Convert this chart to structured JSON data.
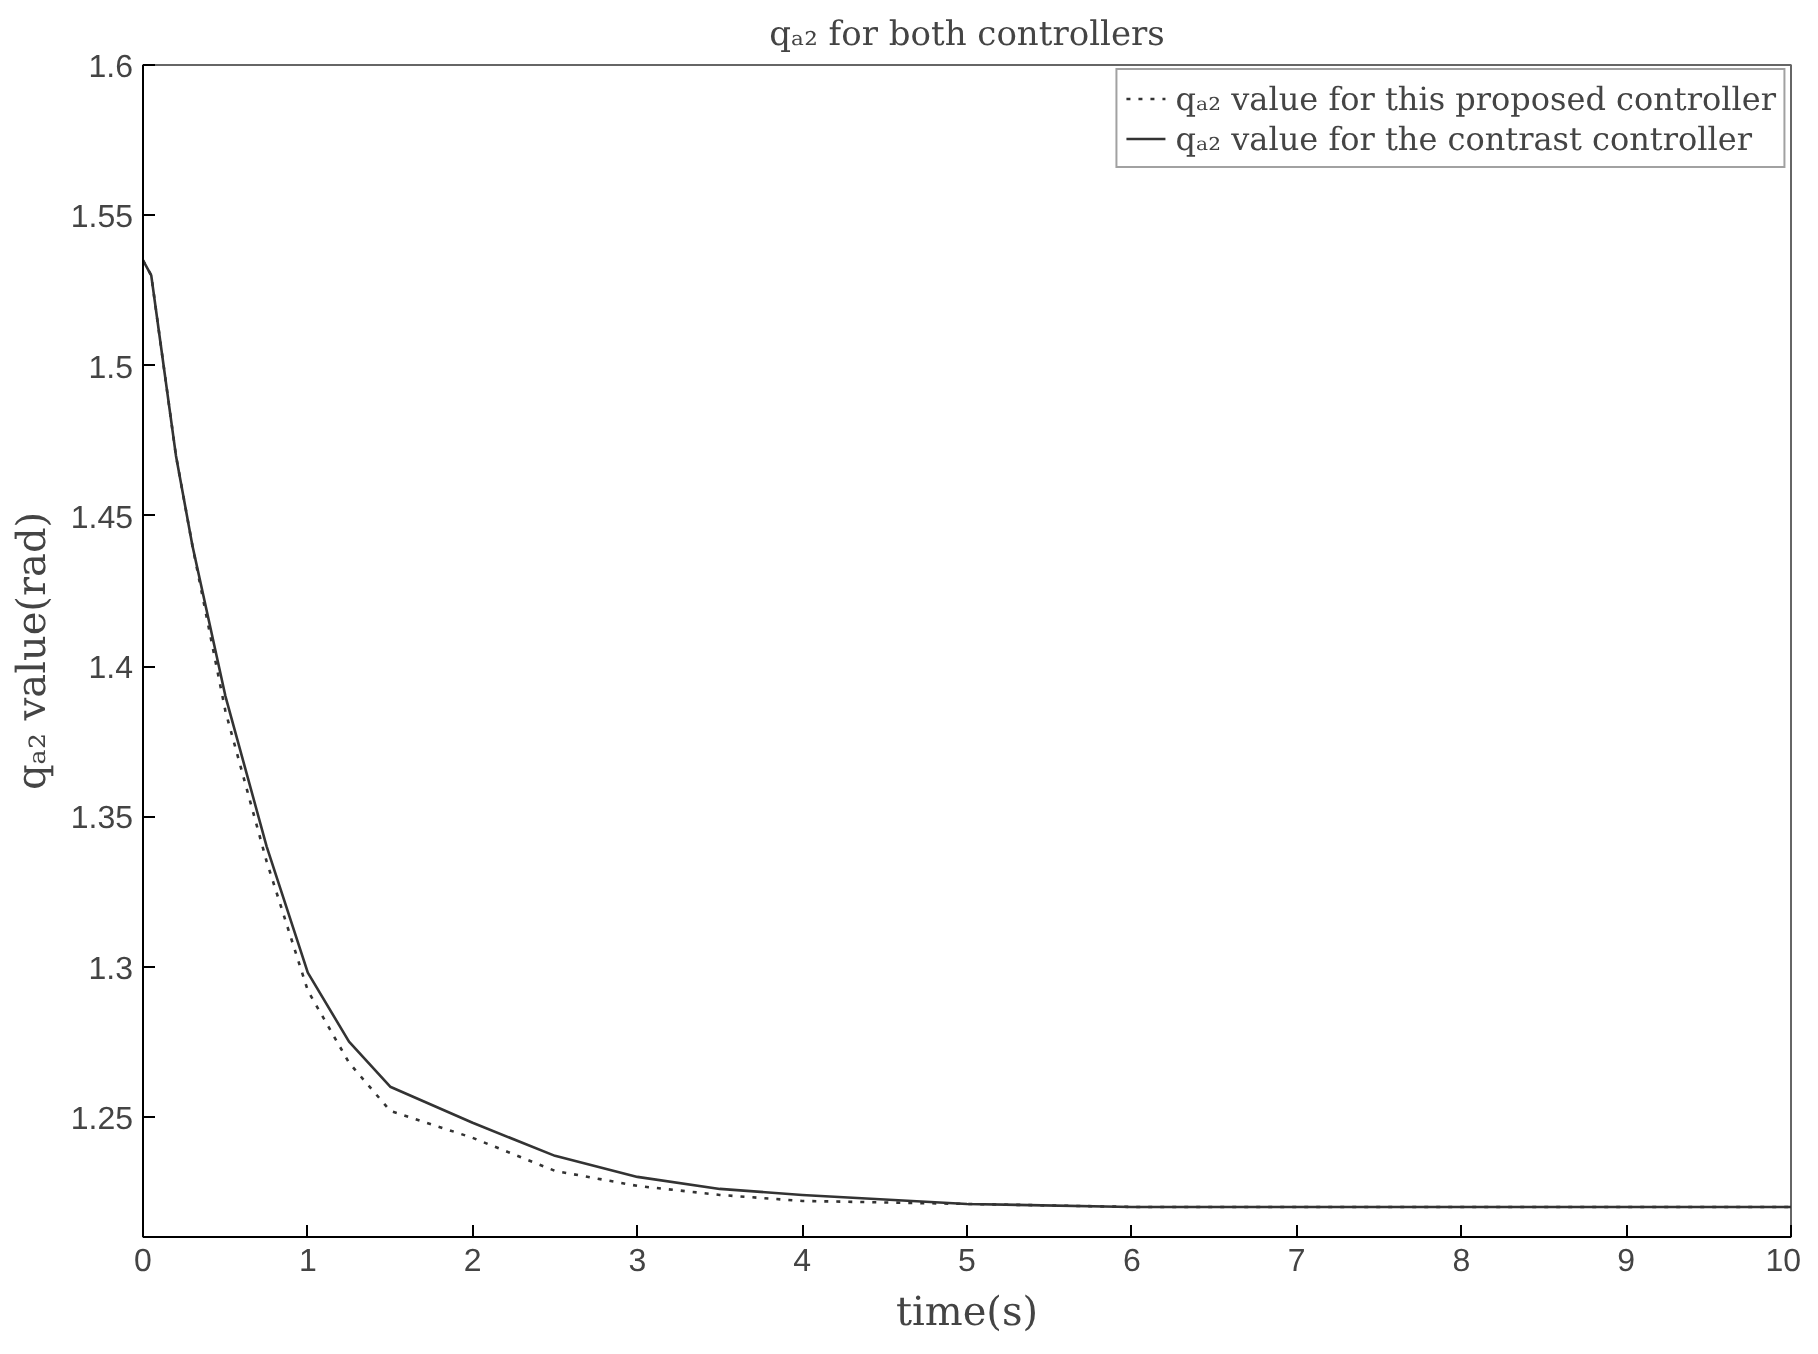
{
  "chart_data": {
    "type": "line",
    "title": "qₐ₂ for both controllers",
    "xlabel": "time(s)",
    "ylabel": "qₐ₂ value(rad)",
    "x": [
      0,
      0.05,
      0.1,
      0.2,
      0.3,
      0.5,
      0.75,
      1,
      1.25,
      1.5,
      2,
      2.5,
      3,
      3.5,
      4,
      5,
      6,
      8,
      10
    ],
    "series": [
      {
        "name": "qₐ₂ value for this proposed controller",
        "color": "#333333",
        "line_style": "dotted",
        "values": [
          1.535,
          1.53,
          1.51,
          1.47,
          1.44,
          1.385,
          1.335,
          1.292,
          1.268,
          1.252,
          1.243,
          1.232,
          1.227,
          1.224,
          1.222,
          1.221,
          1.22,
          1.22,
          1.22
        ]
      },
      {
        "name": "qₐ₂ value for the contrast controller",
        "color": "#333333",
        "line_style": "solid",
        "values": [
          1.535,
          1.53,
          1.51,
          1.47,
          1.44,
          1.39,
          1.34,
          1.298,
          1.275,
          1.26,
          1.248,
          1.237,
          1.23,
          1.226,
          1.224,
          1.221,
          1.22,
          1.22,
          1.22
        ]
      }
    ],
    "xlim": [
      0,
      10
    ],
    "ylim": [
      1.21,
      1.6
    ],
    "xticks": [
      0,
      1,
      2,
      3,
      4,
      5,
      6,
      7,
      8,
      9,
      10
    ],
    "yticks": [
      1.25,
      1.3,
      1.35,
      1.4,
      1.45,
      1.5,
      1.55,
      1.6
    ],
    "grid": false,
    "legend": "top right",
    "marker": "none"
  }
}
